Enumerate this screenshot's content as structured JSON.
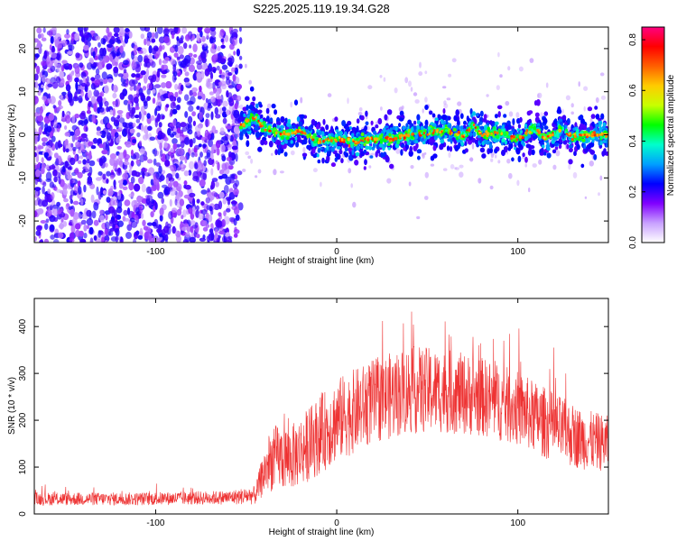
{
  "chart_data": [
    {
      "type": "heatmap",
      "title": "S225.2025.119.19.34.G28",
      "xlabel": "Height of straight line (km)",
      "ylabel": "Frequency (Hz)",
      "xlim": [
        -167,
        150
      ],
      "ylim": [
        -25,
        25
      ],
      "x_ticks": [
        -100,
        0,
        100
      ],
      "y_ticks": [
        -20,
        -10,
        0,
        10,
        20
      ],
      "colorbar": {
        "label": "Normalized spectral amplitude",
        "range": [
          0,
          0.85
        ],
        "ticks": [
          0.0,
          0.2,
          0.4,
          0.6,
          0.8
        ],
        "colors": [
          "#ffffff",
          "#c8a0ff",
          "#8000ff",
          "#0000ff",
          "#00a0ff",
          "#00ffcc",
          "#00ff00",
          "#c8ff00",
          "#ffcc00",
          "#ff6000",
          "#ff0000",
          "#ff0080"
        ]
      },
      "signal": {
        "onset_x": -55,
        "noise_region": [
          -167,
          -53
        ],
        "ridge_frequency_hz": [
          {
            "x": -52,
            "y": 2.0
          },
          {
            "x": -45,
            "y": 4.0
          },
          {
            "x": -40,
            "y": 1.5
          },
          {
            "x": -30,
            "y": 0.0
          },
          {
            "x": -20,
            "y": 1.0
          },
          {
            "x": -10,
            "y": -1.5
          },
          {
            "x": 0,
            "y": -1.0
          },
          {
            "x": 10,
            "y": -1.5
          },
          {
            "x": 20,
            "y": -1.0
          },
          {
            "x": 30,
            "y": -1.0
          },
          {
            "x": 40,
            "y": 0.0
          },
          {
            "x": 50,
            "y": 0.5
          },
          {
            "x": 60,
            "y": 1.0
          },
          {
            "x": 70,
            "y": -0.5
          },
          {
            "x": 75,
            "y": 2.5
          },
          {
            "x": 80,
            "y": 0.0
          },
          {
            "x": 90,
            "y": 0.5
          },
          {
            "x": 100,
            "y": -1.0
          },
          {
            "x": 110,
            "y": 1.5
          },
          {
            "x": 115,
            "y": -1.0
          },
          {
            "x": 125,
            "y": 1.5
          },
          {
            "x": 130,
            "y": -0.5
          },
          {
            "x": 140,
            "y": 0.0
          },
          {
            "x": 150,
            "y": 0.0
          }
        ]
      }
    },
    {
      "type": "line",
      "xlabel": "Height of straight line (km)",
      "ylabel": "SNR (10 * v/v)",
      "xlim": [
        -167,
        150
      ],
      "ylim": [
        0,
        460
      ],
      "x_ticks": [
        -100,
        0,
        100
      ],
      "y_ticks": [
        0,
        100,
        200,
        300,
        400
      ],
      "color": "#ee3333",
      "envelope": [
        {
          "x": -167,
          "mean": 32,
          "amp": 14
        },
        {
          "x": -110,
          "mean": 32,
          "amp": 14
        },
        {
          "x": -60,
          "mean": 35,
          "amp": 15
        },
        {
          "x": -45,
          "mean": 40,
          "amp": 20
        },
        {
          "x": -40,
          "mean": 90,
          "amp": 50
        },
        {
          "x": -35,
          "mean": 120,
          "amp": 70
        },
        {
          "x": -25,
          "mean": 120,
          "amp": 70
        },
        {
          "x": -15,
          "mean": 150,
          "amp": 80
        },
        {
          "x": 0,
          "mean": 200,
          "amp": 90
        },
        {
          "x": 20,
          "mean": 240,
          "amp": 90
        },
        {
          "x": 40,
          "mean": 265,
          "amp": 95
        },
        {
          "x": 60,
          "mean": 262,
          "amp": 90
        },
        {
          "x": 80,
          "mean": 250,
          "amp": 85
        },
        {
          "x": 100,
          "mean": 225,
          "amp": 80
        },
        {
          "x": 120,
          "mean": 185,
          "amp": 75
        },
        {
          "x": 135,
          "mean": 160,
          "amp": 65
        },
        {
          "x": 150,
          "mean": 150,
          "amp": 60
        }
      ]
    }
  ]
}
